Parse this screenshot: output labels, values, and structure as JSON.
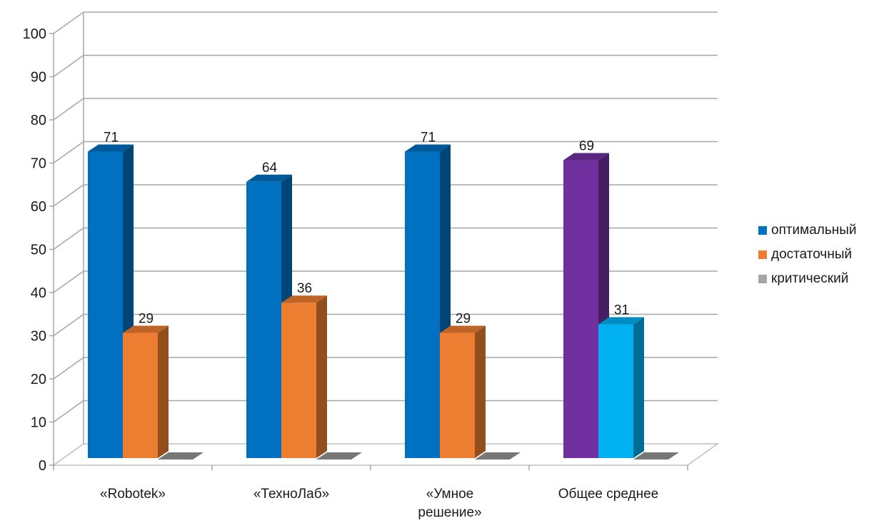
{
  "chart_data": {
    "type": "bar",
    "categories": [
      "«Robotek»",
      "«ТехноЛаб»",
      "«Умное решение»",
      "Общее среднее"
    ],
    "category_lines": [
      [
        "«Robotek»"
      ],
      [
        "«ТехноЛаб»"
      ],
      [
        "«Умное",
        "решение»"
      ],
      [
        "Общее среднее"
      ]
    ],
    "series": [
      {
        "name": "оптимальный",
        "values": [
          71,
          64,
          71,
          69
        ],
        "color": "#0070c0",
        "point_colors": [
          "#0070c0",
          "#0070c0",
          "#0070c0",
          "#7030a0"
        ]
      },
      {
        "name": "достаточный",
        "values": [
          29,
          36,
          29,
          31
        ],
        "color": "#ed7d31",
        "point_colors": [
          "#ed7d31",
          "#ed7d31",
          "#ed7d31",
          "#00b0f0"
        ]
      },
      {
        "name": "критический",
        "values": [
          0,
          0,
          0,
          0
        ],
        "color": "#a5a5a5",
        "point_colors": [
          "#a5a5a5",
          "#a5a5a5",
          "#a5a5a5",
          "#a5a5a5"
        ]
      }
    ],
    "data_labels": [
      [
        "71",
        "29",
        null
      ],
      [
        "64",
        "36",
        null
      ],
      [
        "71",
        "29",
        null
      ],
      [
        "69",
        "31",
        null
      ]
    ],
    "ylim": [
      0,
      100
    ],
    "yticks": [
      "0",
      "10",
      "20",
      "30",
      "40",
      "50",
      "60",
      "70",
      "80",
      "90",
      "100"
    ],
    "grid": true,
    "legend_position": "right",
    "projection": "3d-column"
  }
}
